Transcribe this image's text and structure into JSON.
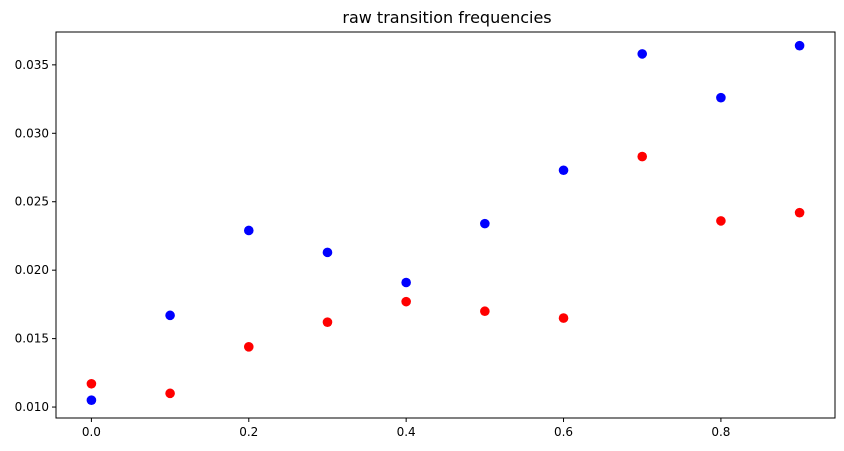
{
  "chart_data": {
    "type": "scatter",
    "title": "raw transition frequencies",
    "xlabel": "",
    "ylabel": "",
    "xlim": [
      -0.045,
      0.945
    ],
    "ylim": [
      0.0092,
      0.0374
    ],
    "xticks": [
      0.0,
      0.2,
      0.4,
      0.6,
      0.8
    ],
    "xtick_labels": [
      "0.0",
      "0.2",
      "0.4",
      "0.6",
      "0.8"
    ],
    "yticks": [
      0.01,
      0.015,
      0.02,
      0.025,
      0.03,
      0.035
    ],
    "ytick_labels": [
      "0.010",
      "0.015",
      "0.020",
      "0.025",
      "0.030",
      "0.035"
    ],
    "grid": false,
    "series": [
      {
        "color": "#0000ff",
        "x": [
          0.0,
          0.1,
          0.2,
          0.3,
          0.4,
          0.5,
          0.6,
          0.7,
          0.8,
          0.9
        ],
        "y": [
          0.0105,
          0.0167,
          0.0229,
          0.0213,
          0.0191,
          0.0234,
          0.0273,
          0.0358,
          0.0326,
          0.0364
        ]
      },
      {
        "color": "#ff0000",
        "x": [
          0.0,
          0.1,
          0.2,
          0.3,
          0.4,
          0.5,
          0.6,
          0.7,
          0.8,
          0.9
        ],
        "y": [
          0.0117,
          0.011,
          0.0144,
          0.0162,
          0.0177,
          0.017,
          0.0165,
          0.0283,
          0.0236,
          0.0242
        ]
      }
    ]
  }
}
